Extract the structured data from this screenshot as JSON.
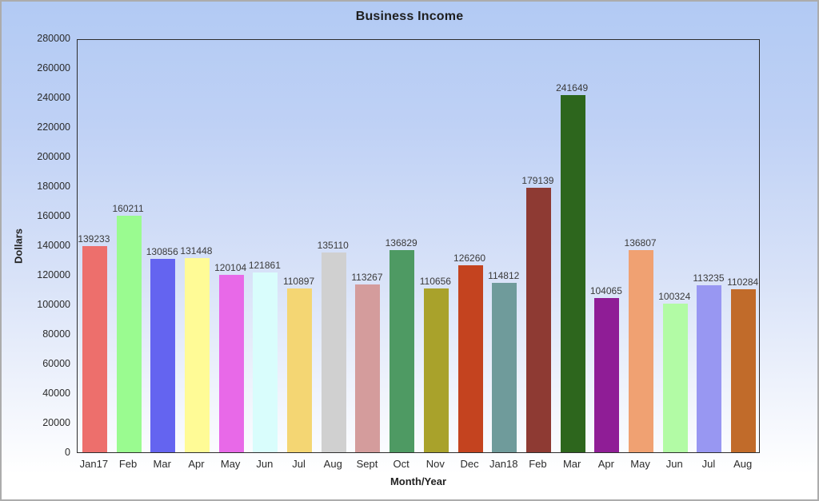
{
  "window": {
    "border_color": "#ACACAC",
    "background_top": "#B2CAF4",
    "background_bottom": "#FFFFFF",
    "plot_border_color": "#2D2D2D"
  },
  "chart_data": {
    "type": "bar",
    "title": "Business Income",
    "xlabel": "Month/Year",
    "ylabel": "Dollars",
    "ylim": [
      0,
      280000
    ],
    "ytick_step": 20000,
    "yticks": [
      0,
      20000,
      40000,
      60000,
      80000,
      100000,
      120000,
      140000,
      160000,
      180000,
      200000,
      220000,
      240000,
      260000,
      280000
    ],
    "grid": false,
    "legend_position": "none",
    "value_labels_shown": true,
    "categories": [
      "Jan17",
      "Feb",
      "Mar",
      "Apr",
      "May",
      "Jun",
      "Jul",
      "Aug",
      "Sept",
      "Oct",
      "Nov",
      "Dec",
      "Jan18",
      "Feb",
      "Mar",
      "Apr",
      "May",
      "Jun",
      "Jul",
      "Aug"
    ],
    "values": [
      139233,
      160211,
      130856,
      131448,
      120104,
      121861,
      110897,
      135110,
      113267,
      136829,
      110656,
      126260,
      114812,
      179139,
      241649,
      104065,
      136807,
      100324,
      113235,
      110284
    ],
    "bar_colors": [
      "#ED6F6C",
      "#9AFB90",
      "#6464F0",
      "#FFFB96",
      "#E869E8",
      "#D9FDFC",
      "#F4D673",
      "#D0D0D0",
      "#D49C9C",
      "#4E9A63",
      "#A9A22B",
      "#C4431F",
      "#6F9B9B",
      "#8E3A33",
      "#2D661D",
      "#8F1D96",
      "#F0A172",
      "#B2FBA5",
      "#9897F2",
      "#C16B2A"
    ]
  }
}
